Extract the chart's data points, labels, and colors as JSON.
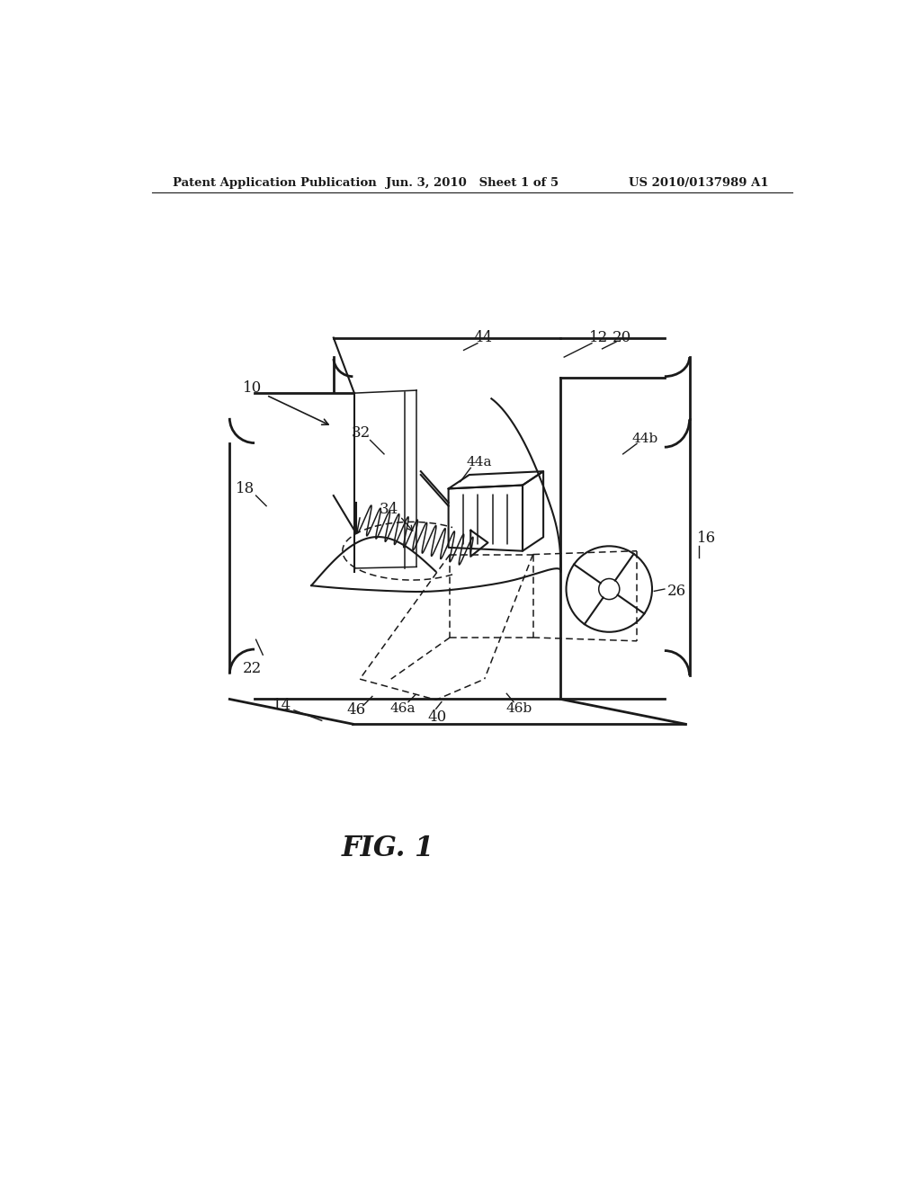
{
  "bg_color": "#ffffff",
  "line_color": "#1a1a1a",
  "header_left": "Patent Application Publication",
  "header_mid": "Jun. 3, 2010   Sheet 1 of 5",
  "header_right": "US 2010/0137989 A1",
  "fig_label": "FIG. 1",
  "figsize": [
    10.24,
    13.2
  ],
  "dpi": 100
}
